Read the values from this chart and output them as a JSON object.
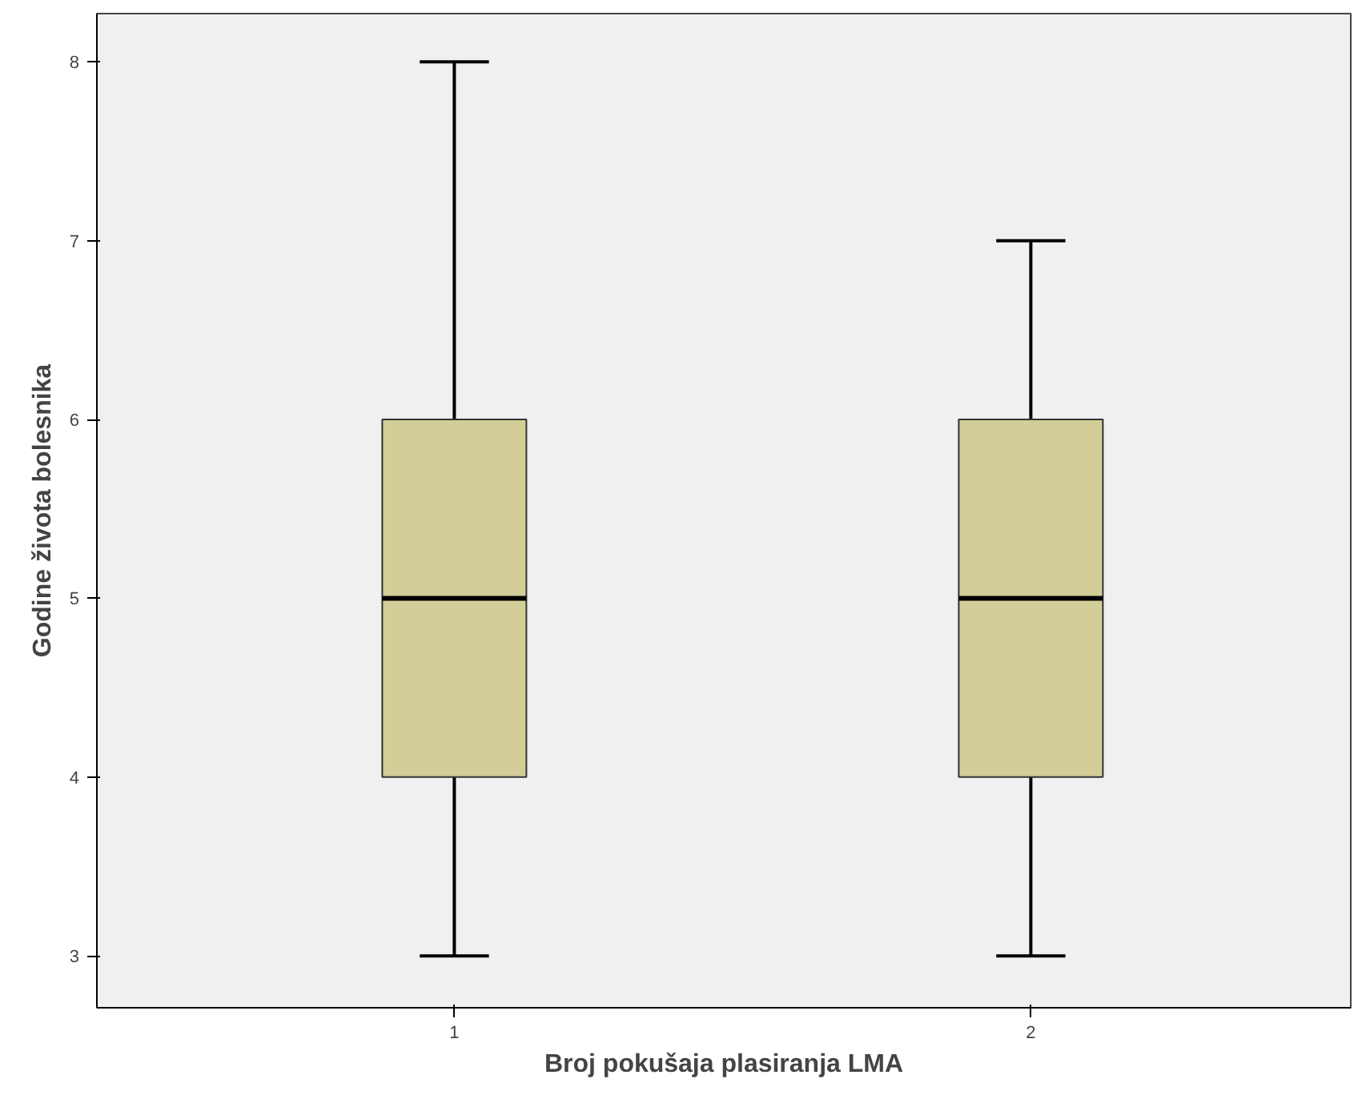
{
  "chart_data": {
    "type": "box",
    "xlabel": "Broj pokušaja plasiranja LMA",
    "ylabel": "Godine života bolesnika",
    "categories": [
      "1",
      "2"
    ],
    "boxes": [
      {
        "low": 3,
        "q1": 4,
        "median": 5,
        "q3": 6,
        "high": 8
      },
      {
        "low": 3,
        "q1": 4,
        "median": 5,
        "q3": 6,
        "high": 7
      }
    ],
    "color": "#d3ce98",
    "ylim": [
      2.71,
      8.27
    ],
    "yticks": [
      3,
      4,
      5,
      6,
      7,
      8
    ],
    "grid": false
  }
}
